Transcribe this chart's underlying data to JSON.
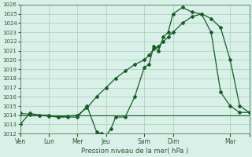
{
  "title": "Pression niveau de la mer( hPa )",
  "background_color": "#cce8dc",
  "plot_bg_color": "#d8f0e8",
  "grid_color": "#aaccbb",
  "line_color": "#1a5c28",
  "ylim": [
    1012,
    1026
  ],
  "ytick_step": 1,
  "xlim": [
    0,
    24
  ],
  "x_tick_positions": [
    0,
    3,
    6,
    9,
    13,
    16,
    22,
    24
  ],
  "x_tick_labels": [
    "Ven",
    "Lun",
    "Mer",
    "Jeu",
    "Sam",
    "Dim",
    "Mar",
    ""
  ],
  "series1_x": [
    0,
    1,
    2,
    3,
    4,
    5,
    6,
    7,
    8,
    8.5,
    9,
    9.5,
    10,
    11,
    12,
    13,
    13.5,
    14,
    14.5,
    15,
    15.5,
    16,
    17,
    18,
    19,
    20,
    21,
    22,
    23,
    24
  ],
  "series1_y": [
    1013.0,
    1014.2,
    1014.0,
    1014.0,
    1013.8,
    1013.8,
    1013.8,
    1015.0,
    1012.2,
    1012.0,
    1011.8,
    1012.5,
    1013.8,
    1013.8,
    1016.0,
    1019.2,
    1019.5,
    1021.5,
    1021.0,
    1022.5,
    1023.0,
    1025.0,
    1025.7,
    1025.2,
    1025.0,
    1023.0,
    1016.5,
    1015.0,
    1014.3,
    1014.3
  ],
  "series2_x": [
    0,
    1,
    2,
    3,
    4,
    5,
    6,
    7,
    8,
    9,
    10,
    11,
    12,
    13,
    13.5,
    14,
    14.5,
    15,
    15.5,
    16,
    17,
    18,
    19,
    20,
    21,
    22,
    23,
    24
  ],
  "series2_y": [
    1014.2,
    1014.1,
    1014.0,
    1013.9,
    1013.8,
    1013.9,
    1014.0,
    1014.8,
    1016.0,
    1017.0,
    1018.0,
    1018.8,
    1019.5,
    1020.0,
    1020.5,
    1021.2,
    1021.5,
    1022.0,
    1022.5,
    1023.0,
    1024.0,
    1024.7,
    1025.0,
    1024.5,
    1023.5,
    1020.0,
    1015.0,
    1014.3
  ],
  "series3_x": [
    0,
    24
  ],
  "series3_y": [
    1014.0,
    1014.0
  ],
  "marker": "D",
  "markersize": 2.0
}
